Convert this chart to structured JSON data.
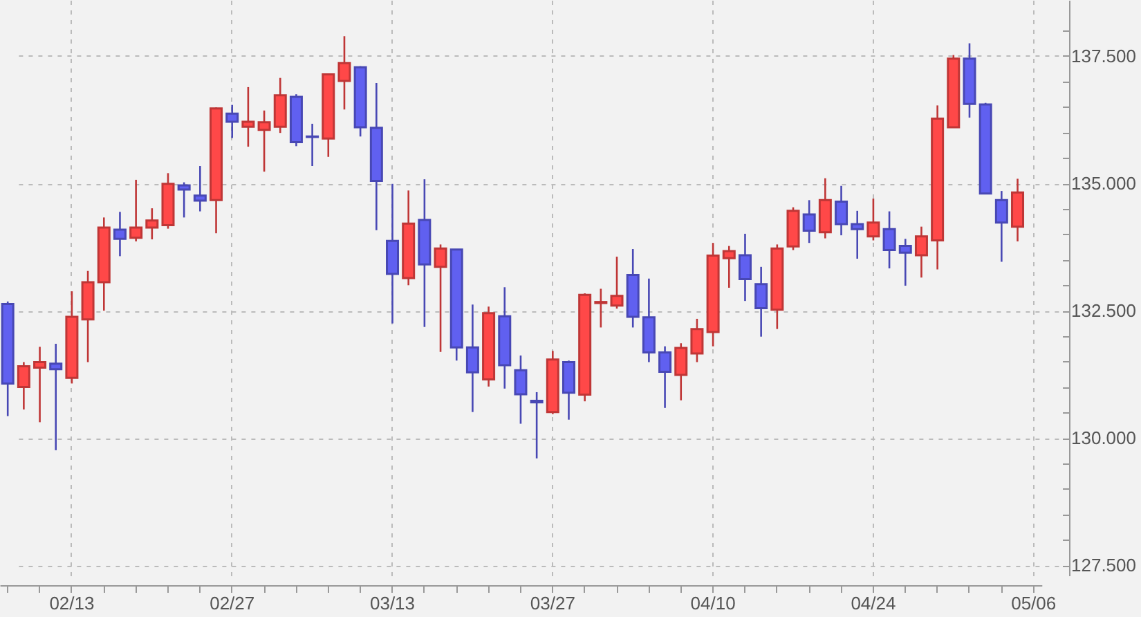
{
  "chart_data": {
    "type": "candlestick",
    "categories": [
      null,
      null,
      null,
      null,
      "02/13",
      null,
      null,
      null,
      null,
      null,
      null,
      null,
      null,
      null,
      "02/27",
      null,
      null,
      null,
      null,
      null,
      null,
      null,
      null,
      null,
      "03/13",
      null,
      null,
      null,
      null,
      null,
      null,
      null,
      null,
      null,
      "03/27",
      null,
      null,
      null,
      null,
      null,
      null,
      null,
      null,
      null,
      "04/10",
      null,
      null,
      null,
      null,
      null,
      null,
      null,
      null,
      null,
      "04/24",
      null,
      null,
      null,
      null,
      null,
      null,
      null,
      null,
      null,
      "05/06"
    ],
    "ohlc": [
      [
        132.63,
        132.68,
        130.43,
        131.07
      ],
      [
        131.0,
        131.49,
        130.56,
        131.41
      ],
      [
        131.38,
        131.79,
        130.31,
        131.49
      ],
      [
        131.46,
        131.85,
        129.76,
        131.35
      ],
      [
        131.18,
        132.88,
        131.07,
        132.38
      ],
      [
        132.33,
        133.28,
        131.49,
        133.06
      ],
      [
        133.06,
        134.33,
        132.5,
        134.13
      ],
      [
        134.09,
        134.44,
        133.57,
        133.91
      ],
      [
        133.93,
        135.07,
        133.86,
        134.13
      ],
      [
        134.13,
        134.51,
        133.9,
        134.27
      ],
      [
        134.18,
        135.2,
        134.11,
        134.99
      ],
      [
        134.96,
        135.02,
        134.33,
        134.88
      ],
      [
        134.76,
        135.34,
        134.45,
        134.66
      ],
      [
        134.67,
        136.49,
        134.02,
        136.47
      ],
      [
        136.37,
        136.54,
        135.89,
        136.21
      ],
      [
        136.11,
        136.89,
        135.72,
        136.21
      ],
      [
        136.05,
        136.43,
        135.23,
        136.2
      ],
      [
        136.11,
        137.07,
        135.99,
        136.73
      ],
      [
        136.7,
        136.75,
        135.73,
        135.81
      ],
      [
        135.92,
        136.17,
        135.34,
        135.91
      ],
      [
        135.88,
        137.16,
        135.52,
        137.14
      ],
      [
        137.01,
        137.89,
        136.45,
        137.36
      ],
      [
        137.28,
        137.3,
        135.92,
        136.1
      ],
      [
        136.09,
        136.97,
        134.08,
        135.05
      ],
      [
        133.87,
        134.99,
        132.25,
        133.22
      ],
      [
        133.14,
        134.86,
        133.0,
        134.21
      ],
      [
        134.28,
        135.08,
        132.18,
        133.41
      ],
      [
        133.36,
        133.8,
        131.69,
        133.72
      ],
      [
        133.7,
        133.71,
        131.52,
        131.78
      ],
      [
        131.78,
        132.62,
        130.51,
        131.29
      ],
      [
        131.15,
        132.58,
        131.01,
        132.45
      ],
      [
        132.39,
        132.96,
        130.97,
        131.43
      ],
      [
        131.33,
        131.62,
        130.28,
        130.86
      ],
      [
        130.73,
        130.9,
        129.6,
        130.7
      ],
      [
        130.51,
        131.71,
        130.47,
        131.54
      ],
      [
        131.49,
        131.52,
        130.36,
        130.89
      ],
      [
        130.85,
        132.84,
        130.72,
        132.81
      ],
      [
        132.65,
        132.93,
        132.17,
        132.67
      ],
      [
        132.6,
        133.56,
        132.54,
        132.79
      ],
      [
        133.2,
        133.71,
        132.17,
        132.38
      ],
      [
        132.37,
        133.13,
        131.49,
        131.68
      ],
      [
        131.68,
        131.8,
        130.59,
        131.3
      ],
      [
        131.24,
        131.86,
        130.74,
        131.77
      ],
      [
        131.66,
        132.34,
        131.49,
        132.14
      ],
      [
        132.08,
        133.83,
        131.8,
        133.58
      ],
      [
        133.53,
        133.77,
        132.95,
        133.67
      ],
      [
        133.59,
        134.01,
        132.69,
        133.12
      ],
      [
        133.02,
        133.36,
        131.99,
        132.55
      ],
      [
        132.52,
        133.8,
        132.14,
        133.72
      ],
      [
        133.76,
        134.53,
        133.69,
        134.46
      ],
      [
        134.39,
        134.67,
        133.83,
        134.07
      ],
      [
        134.04,
        135.1,
        133.92,
        134.67
      ],
      [
        134.64,
        134.95,
        133.98,
        134.2
      ],
      [
        134.2,
        134.46,
        133.52,
        134.1
      ],
      [
        133.96,
        134.7,
        133.88,
        134.23
      ],
      [
        134.1,
        134.45,
        133.33,
        133.69
      ],
      [
        133.77,
        133.91,
        132.99,
        133.64
      ],
      [
        133.59,
        134.15,
        133.15,
        133.96
      ],
      [
        133.88,
        136.53,
        133.31,
        136.27
      ],
      [
        136.1,
        137.52,
        136.1,
        137.45
      ],
      [
        137.45,
        137.75,
        136.29,
        136.56
      ],
      [
        136.55,
        136.58,
        134.79,
        134.8
      ],
      [
        134.67,
        134.85,
        133.46,
        134.23
      ],
      [
        134.15,
        135.09,
        133.86,
        134.82
      ],
      null
    ],
    "colors": [
      "#6060f0",
      "#ff4848",
      "#ff4848",
      "#6060f0",
      "#ff4848",
      "#ff4848",
      "#ff4848",
      "#6060f0",
      "#ff4848",
      "#ff4848",
      "#ff4848",
      "#6060f0",
      "#6060f0",
      "#ff4848",
      "#6060f0",
      "#ff4848",
      "#ff4848",
      "#ff4848",
      "#6060f0",
      "#6060f0",
      "#ff4848",
      "#ff4848",
      "#6060f0",
      "#6060f0",
      "#6060f0",
      "#ff4848",
      "#6060f0",
      "#ff4848",
      "#6060f0",
      "#6060f0",
      "#ff4848",
      "#6060f0",
      "#6060f0",
      "#6060f0",
      "#ff4848",
      "#6060f0",
      "#ff4848",
      "#ff4848",
      "#ff4848",
      "#6060f0",
      "#6060f0",
      "#6060f0",
      "#ff4848",
      "#ff4848",
      "#ff4848",
      "#ff4848",
      "#6060f0",
      "#6060f0",
      "#ff4848",
      "#ff4848",
      "#6060f0",
      "#ff4848",
      "#6060f0",
      "#6060f0",
      "#ff4848",
      "#6060f0",
      "#6060f0",
      "#ff4848",
      "#ff4848",
      "#ff4848",
      "#6060f0",
      "#6060f0",
      "#6060f0",
      "#ff4848",
      null
    ],
    "ylim": [
      127.3,
      138.6
    ],
    "yticks": [
      {
        "value": 127.5,
        "label": "127.500"
      },
      {
        "value": 128,
        "label": null
      },
      {
        "value": 128.5,
        "label": null
      },
      {
        "value": 129,
        "label": null
      },
      {
        "value": 129.5,
        "label": null
      },
      {
        "value": 130,
        "label": "130.000"
      },
      {
        "value": 130.5,
        "label": null
      },
      {
        "value": 131,
        "label": null
      },
      {
        "value": 131.5,
        "label": null
      },
      {
        "value": 132,
        "label": null
      },
      {
        "value": 132.5,
        "label": "132.500"
      },
      {
        "value": 133,
        "label": null
      },
      {
        "value": 133.5,
        "label": null
      },
      {
        "value": 134,
        "label": null
      },
      {
        "value": 134.5,
        "label": null
      },
      {
        "value": 135,
        "label": "135.000"
      },
      {
        "value": 135.5,
        "label": null
      },
      {
        "value": 136,
        "label": null
      },
      {
        "value": 136.5,
        "label": null
      },
      {
        "value": 137,
        "label": null
      },
      {
        "value": 137.5,
        "label": "137.500"
      },
      {
        "value": 138,
        "label": null
      }
    ],
    "grid": true
  }
}
